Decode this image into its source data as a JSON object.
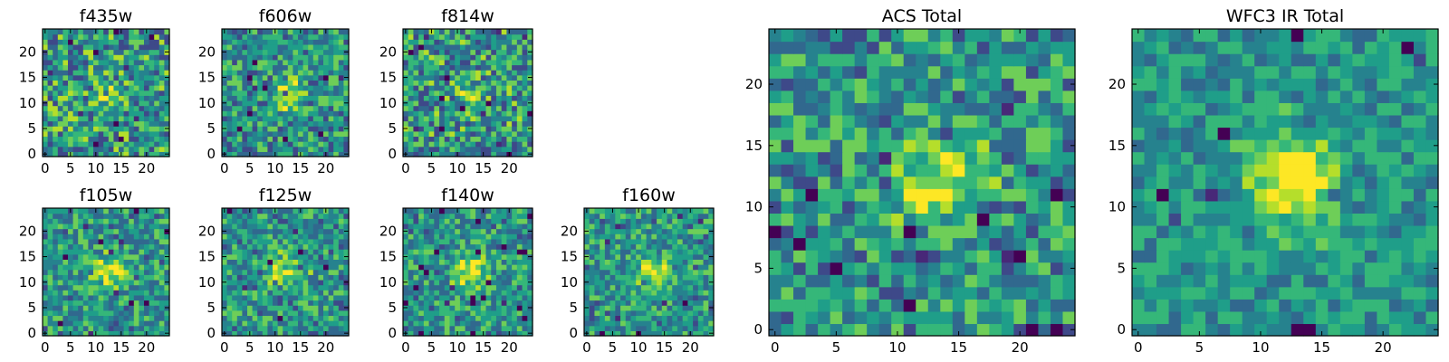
{
  "chart_data": [
    {
      "type": "heatmap",
      "title": "f435w",
      "seed": 11,
      "noise": 0.36,
      "bump": 0.18,
      "xticks": [
        0,
        5,
        10,
        15,
        20
      ],
      "yticks": [
        0,
        5,
        10,
        15,
        20
      ],
      "xlim": [
        0,
        25
      ],
      "ylim": [
        0,
        25
      ]
    },
    {
      "type": "heatmap",
      "title": "f606w",
      "seed": 23,
      "noise": 0.3,
      "bump": 0.32,
      "xticks": [
        0,
        5,
        10,
        15,
        20
      ],
      "yticks": [
        0,
        5,
        10,
        15,
        20
      ],
      "xlim": [
        0,
        25
      ],
      "ylim": [
        0,
        25
      ]
    },
    {
      "type": "heatmap",
      "title": "f814w",
      "seed": 37,
      "noise": 0.34,
      "bump": 0.24,
      "xticks": [
        0,
        5,
        10,
        15,
        20
      ],
      "yticks": [
        0,
        5,
        10,
        15,
        20
      ],
      "xlim": [
        0,
        25
      ],
      "ylim": [
        0,
        25
      ]
    },
    {
      "type": "heatmap",
      "title": "f105w",
      "seed": 41,
      "noise": 0.26,
      "bump": 0.42,
      "xticks": [
        0,
        5,
        10,
        15,
        20
      ],
      "yticks": [
        0,
        5,
        10,
        15,
        20
      ],
      "xlim": [
        0,
        25
      ],
      "ylim": [
        0,
        25
      ]
    },
    {
      "type": "heatmap",
      "title": "f125w",
      "seed": 53,
      "noise": 0.28,
      "bump": 0.36,
      "xticks": [
        0,
        5,
        10,
        15,
        20
      ],
      "yticks": [
        0,
        5,
        10,
        15,
        20
      ],
      "xlim": [
        0,
        25
      ],
      "ylim": [
        0,
        25
      ]
    },
    {
      "type": "heatmap",
      "title": "f140w",
      "seed": 67,
      "noise": 0.26,
      "bump": 0.48,
      "xticks": [
        0,
        5,
        10,
        15,
        20
      ],
      "yticks": [
        0,
        5,
        10,
        15,
        20
      ],
      "xlim": [
        0,
        25
      ],
      "ylim": [
        0,
        25
      ]
    },
    {
      "type": "heatmap",
      "title": "f160w",
      "seed": 79,
      "noise": 0.26,
      "bump": 0.42,
      "xticks": [
        0,
        5,
        10,
        15,
        20
      ],
      "yticks": [
        0,
        5,
        10,
        15,
        20
      ],
      "xlim": [
        0,
        25
      ],
      "ylim": [
        0,
        25
      ]
    },
    {
      "type": "heatmap",
      "title": "ACS Total",
      "seed": 83,
      "noise": 0.3,
      "bump": 0.4,
      "xticks": [
        0,
        5,
        10,
        15,
        20
      ],
      "yticks": [
        0,
        5,
        10,
        15,
        20
      ],
      "xlim": [
        0,
        25
      ],
      "ylim": [
        0,
        25
      ]
    },
    {
      "type": "heatmap",
      "title": "WFC3 IR Total",
      "seed": 97,
      "noise": 0.2,
      "bump": 0.6,
      "xticks": [
        0,
        5,
        10,
        15,
        20
      ],
      "yticks": [
        0,
        5,
        10,
        15,
        20
      ],
      "xlim": [
        0,
        25
      ],
      "ylim": [
        0,
        25
      ]
    }
  ],
  "colormap": [
    "#440154",
    "#482878",
    "#3e4989",
    "#31688e",
    "#26828e",
    "#1f9e89",
    "#35b779",
    "#6ece58",
    "#b5de2b",
    "#fde725"
  ]
}
